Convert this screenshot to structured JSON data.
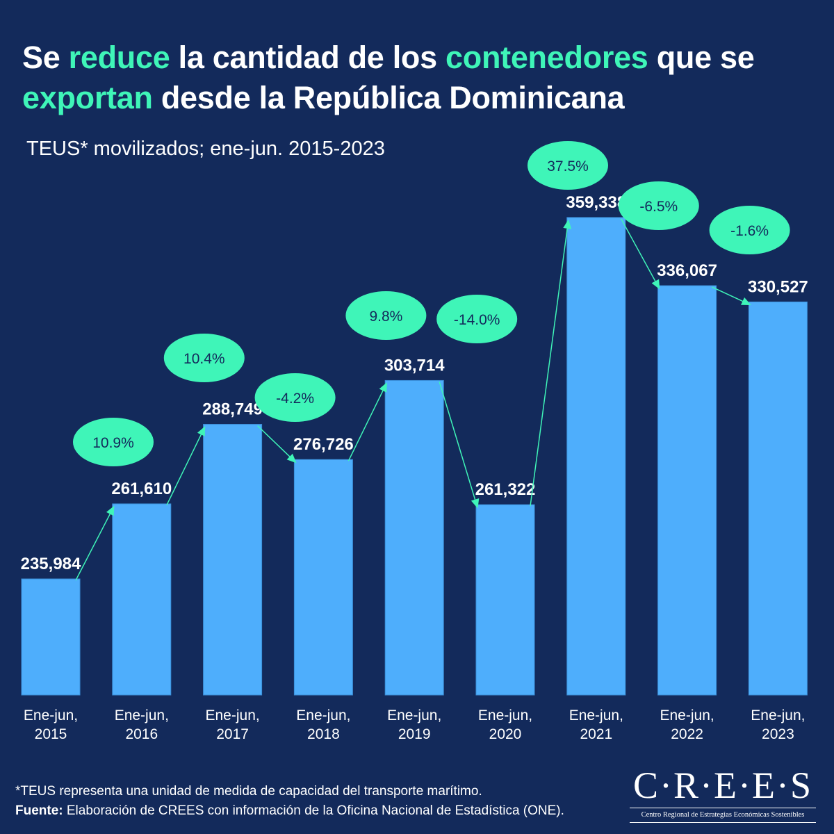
{
  "title": {
    "parts": [
      {
        "text": "Se ",
        "highlight": false
      },
      {
        "text": "reduce",
        "highlight": true
      },
      {
        "text": " la cantidad de los ",
        "highlight": false
      },
      {
        "text": "contenedores",
        "highlight": true
      },
      {
        "text": " que se ",
        "highlight": false
      },
      {
        "text": "exportan",
        "highlight": true
      },
      {
        "text": " desde la República Dominicana",
        "highlight": false
      }
    ]
  },
  "subtitle": "TEUS* movilizados; ene-jun. 2015-2023",
  "colors": {
    "background": "#132a5b",
    "bar": "#4eaefc",
    "accent": "#3ff5b8",
    "text": "#ffffff",
    "bubble_text": "#132a5b"
  },
  "chart_data": {
    "type": "bar",
    "title": "Se reduce la cantidad de los contenedores que se exportan desde la República Dominicana",
    "subtitle": "TEUS* movilizados; ene-jun. 2015-2023",
    "categories": [
      [
        "Ene-jun,",
        "2015"
      ],
      [
        "Ene-jun,",
        "2016"
      ],
      [
        "Ene-jun,",
        "2017"
      ],
      [
        "Ene-jun,",
        "2018"
      ],
      [
        "Ene-jun,",
        "2019"
      ],
      [
        "Ene-jun,",
        "2020"
      ],
      [
        "Ene-jun,",
        "2021"
      ],
      [
        "Ene-jun,",
        "2022"
      ],
      [
        "Ene-jun,",
        "2023"
      ]
    ],
    "values": [
      235984,
      261610,
      288749,
      276726,
      303714,
      261322,
      359338,
      336067,
      330527
    ],
    "value_labels": [
      "235,984",
      "261,610",
      "288,749",
      "276,726",
      "303,714",
      "261,322",
      "359,338",
      "336,067",
      "330,527"
    ],
    "changes": [
      "10.9%",
      "10.4%",
      "-4.2%",
      "9.8%",
      "-14.0%",
      "37.5%",
      "-6.5%",
      "-1.6%"
    ],
    "xlabel": "",
    "ylabel": "",
    "ylim": [
      196000,
      400000
    ],
    "grid": false,
    "legend": "none"
  },
  "footnote": "*TEUS representa una unidad de medida de capacidad  del transporte marítimo.",
  "source_label": "Fuente:",
  "source_text": " Elaboración de CREES con información de la Oficina Nacional de Estadística (ONE).",
  "logo": {
    "name": "C·R·E·E·S",
    "full_name": "Centro Regional de Estrategias Económicas Sostenibles"
  }
}
